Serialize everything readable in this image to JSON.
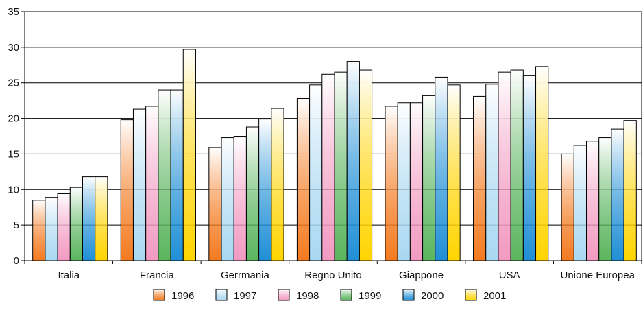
{
  "chart_data": {
    "type": "bar",
    "title": "",
    "xlabel": "",
    "ylabel": "",
    "ylim": [
      0,
      35
    ],
    "yticks": [
      0,
      5,
      10,
      15,
      20,
      25,
      30,
      35
    ],
    "grid": true,
    "legend_position": "bottom",
    "categories": [
      "Italia",
      "Francia",
      "Gerrmania",
      "Regno Unito",
      "Giappone",
      "USA",
      "Unione Europea"
    ],
    "series": [
      {
        "name": "1996",
        "color": "#f47a1f",
        "values": [
          8.5,
          19.8,
          15.9,
          22.8,
          21.7,
          23.1,
          15.0
        ]
      },
      {
        "name": "1997",
        "color": "#a9d8f2",
        "values": [
          8.9,
          21.3,
          17.3,
          24.7,
          22.2,
          24.8,
          16.2
        ]
      },
      {
        "name": "1998",
        "color": "#f29ac1",
        "values": [
          9.4,
          21.7,
          17.4,
          26.2,
          22.2,
          26.5,
          16.8
        ]
      },
      {
        "name": "1999",
        "color": "#5ab55e",
        "values": [
          10.3,
          24.0,
          18.8,
          26.5,
          23.2,
          26.8,
          17.3
        ]
      },
      {
        "name": "2000",
        "color": "#1f8fd6",
        "values": [
          11.8,
          24.0,
          19.9,
          28.0,
          25.8,
          26.0,
          18.5
        ]
      },
      {
        "name": "2001",
        "color": "#ffd400",
        "values": [
          11.8,
          29.7,
          21.4,
          26.8,
          24.7,
          27.3,
          19.7
        ]
      }
    ]
  }
}
